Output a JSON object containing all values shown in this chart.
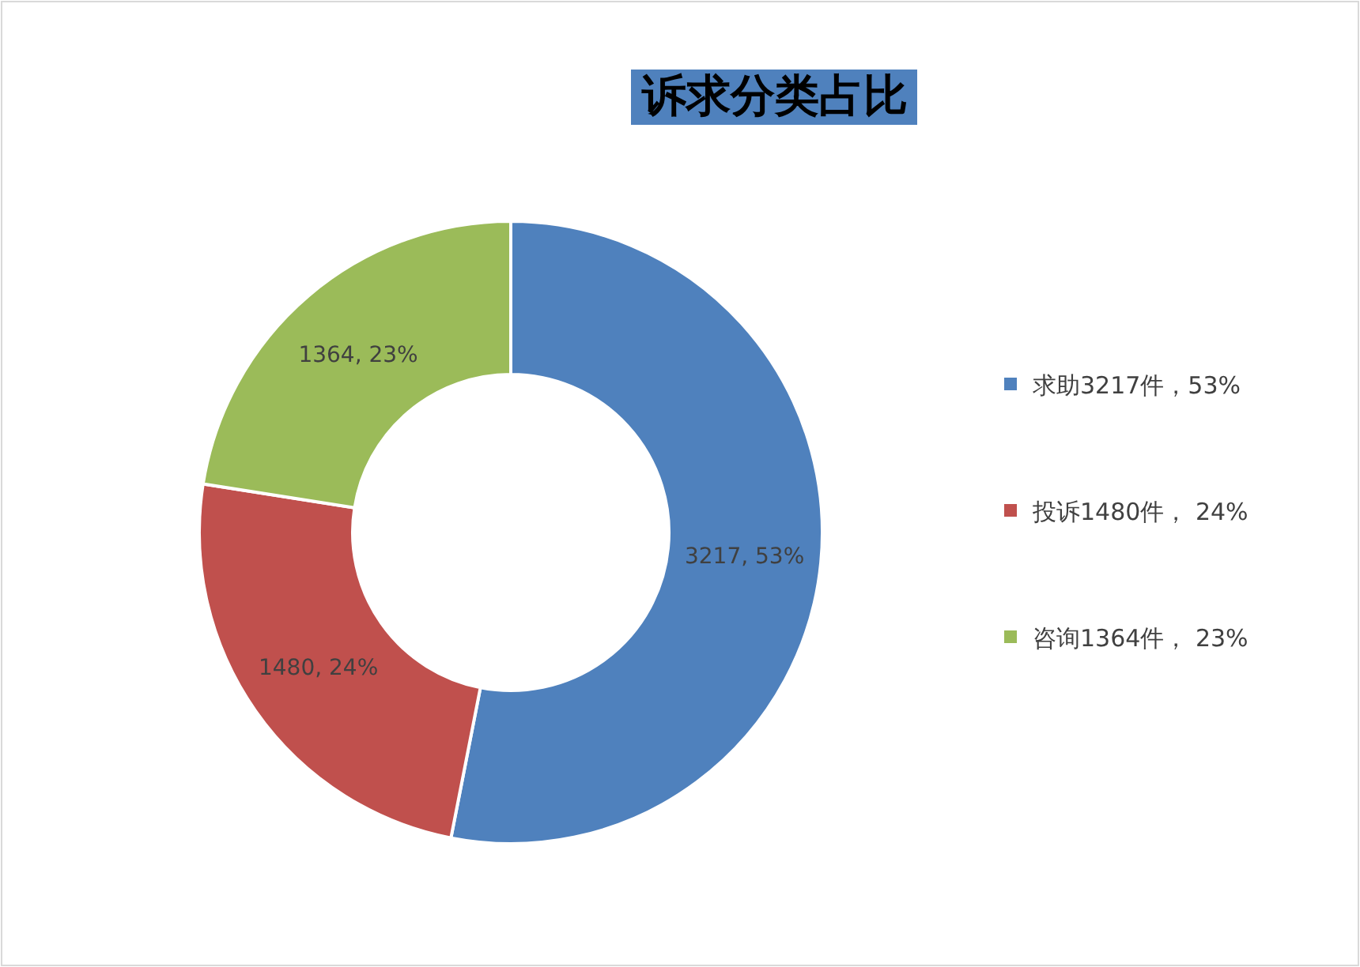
{
  "chart_data": {
    "type": "donut",
    "title": "诉求分类占比",
    "categories": [
      "求助3217件，53%",
      "投诉1480件， 24%",
      "咨询1364件， 23%"
    ],
    "values": [
      3217,
      1480,
      1364
    ],
    "colors": [
      "#4f81bd",
      "#c0504d",
      "#9bbb59"
    ],
    "value_labels": [
      "3217, 53%",
      "1480, 24%",
      "1364, 23%"
    ],
    "legend": "right"
  }
}
